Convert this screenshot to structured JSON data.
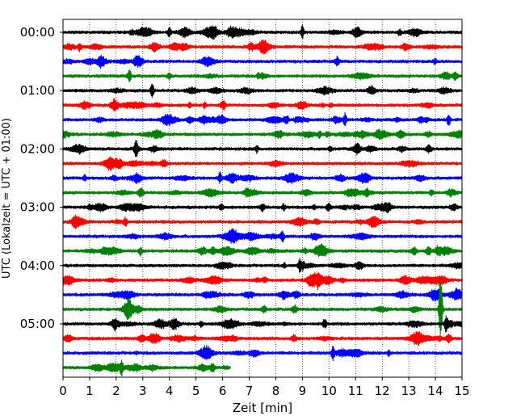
{
  "chart_data": {
    "type": "line",
    "title": "",
    "xlabel": "Zeit  [min]",
    "ylabel": "UTC (Lokalzeit = UTC + 01:00)",
    "xlim": [
      0,
      15
    ],
    "x_ticks": [
      "0",
      "1",
      "2",
      "3",
      "4",
      "5",
      "6",
      "7",
      "8",
      "9",
      "10",
      "11",
      "12",
      "13",
      "14",
      "15"
    ],
    "y_ticks": [
      "00:00",
      "01:00",
      "02:00",
      "03:00",
      "04:00",
      "05:00"
    ],
    "row_interval_min": 15,
    "grid_x": true,
    "colors": [
      "#000000",
      "#ff0000",
      "#0000ff",
      "#008000"
    ],
    "rows": [
      {
        "start": "00:00",
        "duration_min": 15,
        "color": "#000000"
      },
      {
        "start": "00:15",
        "duration_min": 15,
        "color": "#ff0000"
      },
      {
        "start": "00:30",
        "duration_min": 15,
        "color": "#0000ff"
      },
      {
        "start": "00:45",
        "duration_min": 15,
        "color": "#008000"
      },
      {
        "start": "01:00",
        "duration_min": 15,
        "color": "#000000"
      },
      {
        "start": "01:15",
        "duration_min": 15,
        "color": "#ff0000"
      },
      {
        "start": "01:30",
        "duration_min": 15,
        "color": "#0000ff"
      },
      {
        "start": "01:45",
        "duration_min": 15,
        "color": "#008000"
      },
      {
        "start": "02:00",
        "duration_min": 15,
        "color": "#000000"
      },
      {
        "start": "02:15",
        "duration_min": 15,
        "color": "#ff0000"
      },
      {
        "start": "02:30",
        "duration_min": 15,
        "color": "#0000ff"
      },
      {
        "start": "02:45",
        "duration_min": 15,
        "color": "#008000"
      },
      {
        "start": "03:00",
        "duration_min": 15,
        "color": "#000000"
      },
      {
        "start": "03:15",
        "duration_min": 15,
        "color": "#ff0000"
      },
      {
        "start": "03:30",
        "duration_min": 15,
        "color": "#0000ff"
      },
      {
        "start": "03:45",
        "duration_min": 15,
        "color": "#008000"
      },
      {
        "start": "04:00",
        "duration_min": 15,
        "color": "#000000"
      },
      {
        "start": "04:15",
        "duration_min": 15,
        "color": "#ff0000"
      },
      {
        "start": "04:30",
        "duration_min": 15,
        "color": "#0000ff"
      },
      {
        "start": "04:45",
        "duration_min": 15,
        "color": "#008000"
      },
      {
        "start": "05:00",
        "duration_min": 15,
        "color": "#000000"
      },
      {
        "start": "05:15",
        "duration_min": 15,
        "color": "#ff0000"
      },
      {
        "start": "05:30",
        "duration_min": 15,
        "color": "#0000ff"
      },
      {
        "start": "05:45",
        "duration_min": 6.3,
        "color": "#008000"
      }
    ],
    "events": [
      {
        "row": 0,
        "x": 4.0,
        "amp": 0.35
      },
      {
        "row": 0,
        "x": 9.0,
        "amp": 0.4
      },
      {
        "row": 3,
        "x": 2.5,
        "amp": 0.45
      },
      {
        "row": 4,
        "x": 3.35,
        "amp": 0.5
      },
      {
        "row": 6,
        "x": 10.6,
        "amp": 0.45
      },
      {
        "row": 6,
        "x": 14.5,
        "amp": 0.4
      },
      {
        "row": 8,
        "x": 2.75,
        "amp": 0.55
      },
      {
        "row": 10,
        "x": 5.9,
        "amp": 0.35
      },
      {
        "row": 14,
        "x": 8.25,
        "amp": 0.4
      },
      {
        "row": 16,
        "x": 8.9,
        "amp": 0.45
      },
      {
        "row": 19,
        "x": 14.2,
        "amp": 2.5
      },
      {
        "row": 20,
        "x": 14.4,
        "amp": 0.45
      },
      {
        "row": 22,
        "x": 10.15,
        "amp": 0.45
      },
      {
        "row": 23,
        "x": 2.2,
        "amp": 0.45
      }
    ]
  }
}
